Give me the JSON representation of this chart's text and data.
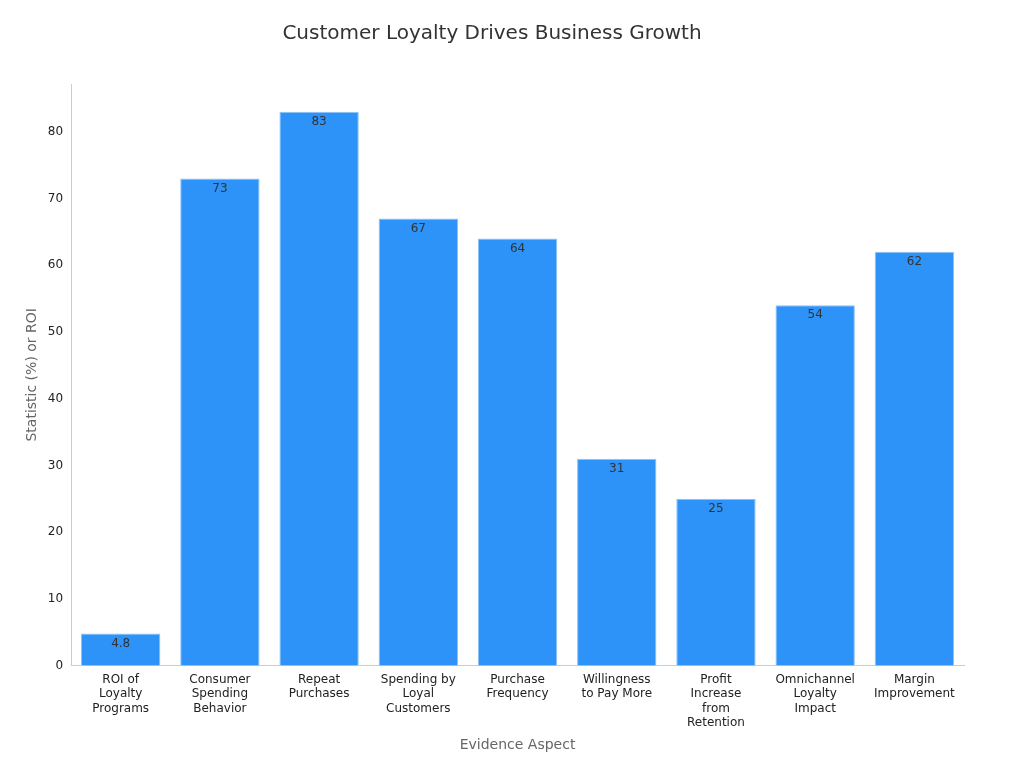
{
  "chart_data": {
    "type": "bar",
    "title": "Customer Loyalty Drives Business Growth",
    "xlabel": "Evidence Aspect",
    "ylabel": "Statistic (%) or ROI",
    "categories": [
      "ROI of Loyalty Programs",
      "Consumer Spending Behavior",
      "Repeat Purchases",
      "Spending by Loyal Customers",
      "Purchase Frequency",
      "Willingness to Pay More",
      "Profit Increase from Retention",
      "Omnichannel Loyalty Impact",
      "Margin Improvement"
    ],
    "values": [
      4.8,
      73,
      83,
      67,
      64,
      31,
      25,
      54,
      62
    ],
    "color": "#2e93f8",
    "ylim": [
      0,
      87.15
    ],
    "yticks": [
      0,
      10,
      20,
      30,
      40,
      50,
      60,
      70,
      80
    ],
    "grid": false,
    "legend": false,
    "data_labels": true
  }
}
